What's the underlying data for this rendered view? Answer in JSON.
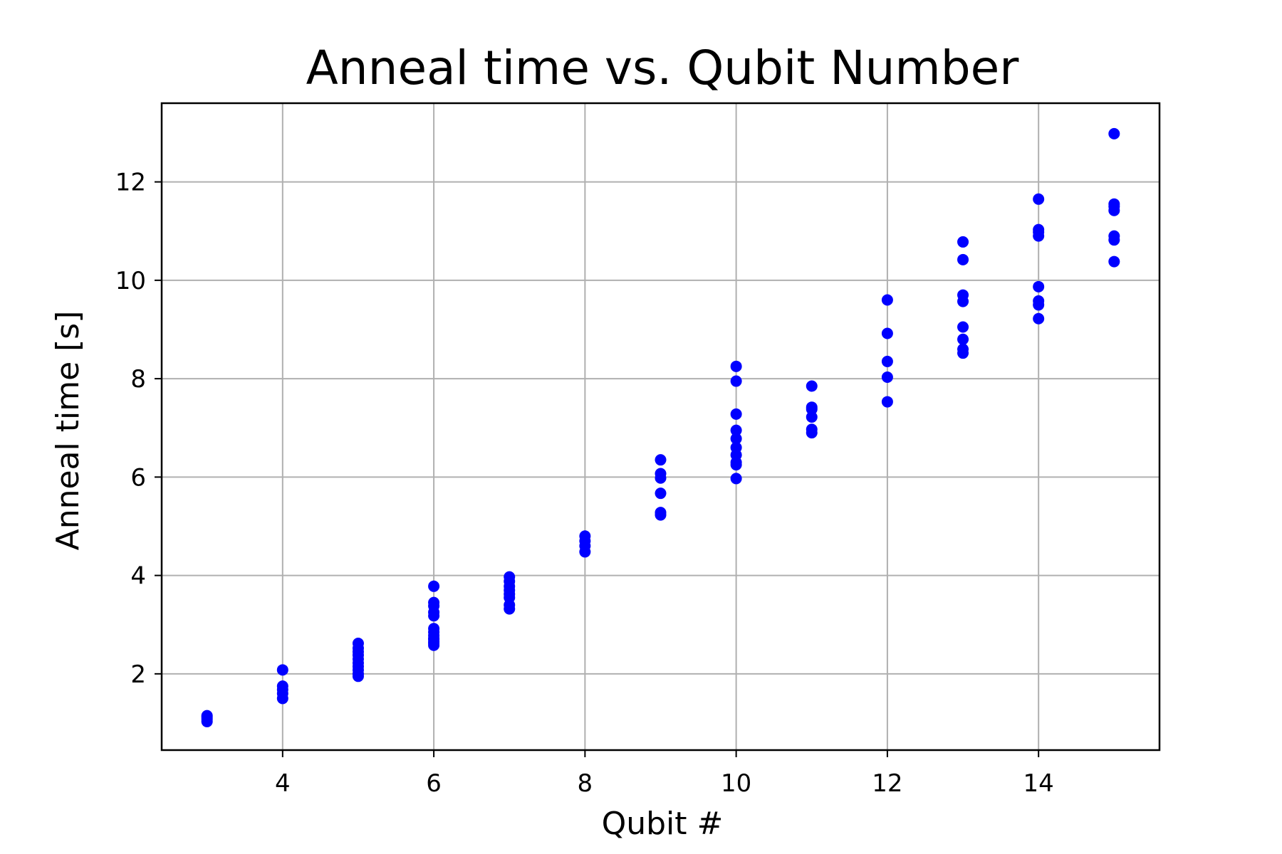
{
  "chart_data": {
    "type": "scatter",
    "title": "Anneal time vs. Qubit Number",
    "xlabel": "Qubit #",
    "ylabel": "Anneal time  [s]",
    "xlim": [
      2.4,
      15.6
    ],
    "ylim": [
      0.45,
      13.6
    ],
    "xticks": [
      4,
      6,
      8,
      10,
      12,
      14
    ],
    "yticks": [
      2,
      4,
      6,
      8,
      10,
      12
    ],
    "grid": true,
    "marker_color": "#0000ff",
    "series": [
      {
        "x": [
          3,
          3,
          3,
          3,
          4,
          4,
          4,
          4,
          4,
          5,
          5,
          5,
          5,
          5,
          5,
          5,
          5,
          5,
          5,
          6,
          6,
          6,
          6,
          6,
          6,
          6,
          6,
          6,
          6,
          6,
          6,
          6,
          7,
          7,
          7,
          7,
          7,
          7,
          7,
          7,
          8,
          8,
          8,
          8,
          9,
          9,
          9,
          9,
          9,
          9,
          10,
          10,
          10,
          10,
          10,
          10,
          10,
          10,
          10,
          10,
          11,
          11,
          11,
          11,
          11,
          11,
          12,
          12,
          12,
          12,
          12,
          13,
          13,
          13,
          13,
          13,
          13,
          13,
          13,
          14,
          14,
          14,
          14,
          14,
          14,
          14,
          14,
          15,
          15,
          15,
          15,
          15,
          15,
          15
        ],
        "y": [
          1.03,
          1.08,
          1.12,
          1.15,
          1.5,
          1.6,
          1.68,
          1.75,
          2.08,
          1.95,
          2.0,
          2.08,
          2.15,
          2.22,
          2.3,
          2.38,
          2.45,
          2.52,
          2.62,
          2.58,
          2.65,
          2.72,
          2.78,
          2.85,
          2.92,
          3.18,
          3.25,
          3.38,
          3.45,
          3.78,
          2.62,
          2.7,
          3.32,
          3.4,
          3.55,
          3.62,
          3.7,
          3.78,
          3.88,
          3.97,
          4.48,
          4.6,
          4.7,
          4.8,
          5.23,
          5.28,
          5.67,
          5.98,
          6.07,
          6.35,
          5.97,
          6.25,
          6.3,
          6.45,
          6.6,
          6.78,
          6.95,
          7.28,
          7.95,
          8.25,
          6.9,
          6.97,
          7.22,
          7.38,
          7.42,
          7.85,
          7.53,
          8.03,
          8.35,
          8.92,
          9.6,
          8.52,
          8.6,
          8.8,
          9.05,
          9.57,
          9.7,
          10.42,
          10.78,
          9.22,
          9.5,
          9.58,
          9.87,
          10.9,
          10.98,
          11.03,
          11.65,
          10.38,
          10.82,
          10.9,
          11.42,
          11.5,
          11.55,
          12.98
        ]
      }
    ]
  }
}
